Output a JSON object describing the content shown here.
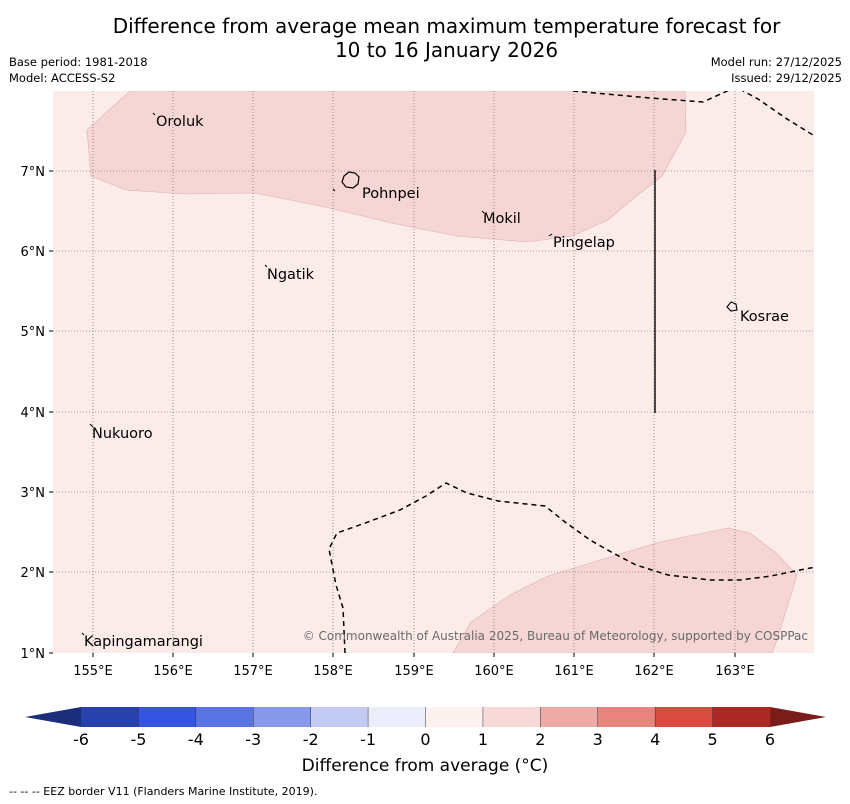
{
  "title_line1": "Difference from average mean maximum temperature forecast for",
  "title_line2": "10 to 16 January 2026",
  "base_period": "Base period: 1981-2018",
  "model": "Model: ACCESS-S2",
  "model_run": "Model run: 27/12/2025",
  "issued": "Issued: 29/12/2025",
  "map": {
    "lon_labels": [
      "155°E",
      "156°E",
      "157°E",
      "158°E",
      "159°E",
      "160°E",
      "161°E",
      "162°E",
      "163°E"
    ],
    "lat_labels": [
      "7°N",
      "6°N",
      "5°N",
      "4°N",
      "3°N",
      "2°N",
      "1°N"
    ],
    "places": [
      {
        "name": "Oroluk"
      },
      {
        "name": "Pohnpei"
      },
      {
        "name": "Mokil"
      },
      {
        "name": "Pingelap"
      },
      {
        "name": "Ngatik"
      },
      {
        "name": "Kosrae"
      },
      {
        "name": "Nukuoro"
      },
      {
        "name": "Kapingamarangi"
      }
    ],
    "copyright": "© Commonwealth of Australia 2025, Bureau of Meteorology, supported by COSPPac",
    "colors": {
      "base_fill": "#fbebe9",
      "warm_fill": "#f5d6d4"
    }
  },
  "colorbar": {
    "ticks": [
      "-6",
      "-5",
      "-4",
      "-3",
      "-2",
      "-1",
      "0",
      "1",
      "2",
      "3",
      "4",
      "5",
      "6"
    ],
    "colors": [
      "#2941ad",
      "#3554e0",
      "#5b74e3",
      "#8799ea",
      "#c4cbf3",
      "#ebedfb",
      "#fdf1ef",
      "#f7d9d7",
      "#eeaaa7",
      "#e8837e",
      "#d94a40",
      "#ab2a25"
    ],
    "under_color": "#1c2d7a",
    "over_color": "#7a1c1a",
    "label": "Difference from average (°C)"
  },
  "footer": "--  --  -- EEZ border V11 (Flanders Marine Institute, 2019)."
}
